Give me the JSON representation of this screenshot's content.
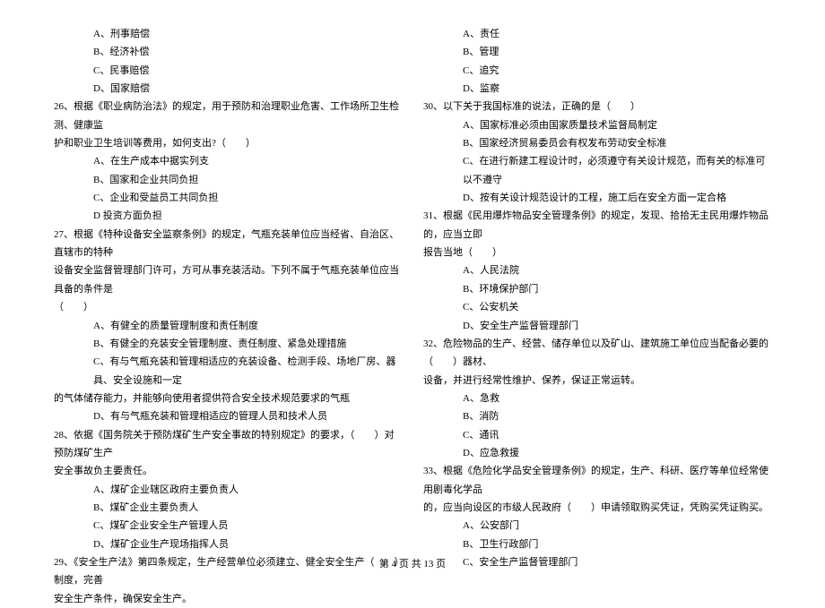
{
  "left": {
    "opts25": [
      "A、刑事赔偿",
      "B、经济补偿",
      "C、民事赔偿",
      "D、国家赔偿"
    ],
    "q26a": "26、根据《职业病防治法》的规定，用于预防和治理职业危害、工作场所卫生检测、健康监",
    "q26b": "护和职业卫生培训等费用，如何支出?（　　）",
    "opts26": [
      "A、在生产成本中据实列支",
      "B、国家和企业共同负担",
      "C、企业和受益员工共同负担",
      "D 投资方面负担"
    ],
    "q27a": "27、根据《特种设备安全监察条例》的规定，气瓶充装单位应当经省、自治区、直辖市的特种",
    "q27b": "设备安全监督管理部门许可，方可从事充装活动。下列不属于气瓶充装单位应当具备的条件是",
    "q27c": "（　　）",
    "opts27a": "A、有健全的质量管理制度和责任制度",
    "opts27b": "B、有健全的充装安全管理制度、责任制度、紧急处理措施",
    "opts27c1": "C、有与气瓶充装和管理相适应的充装设备、检测手段、场地厂房、器具、安全设施和一定",
    "opts27c2": "的气体储存能力，并能够向使用者提供符合安全技术规范要求的气瓶",
    "opts27d": "D、有与气瓶充装和管理相适应的管理人员和技术人员",
    "q28a": "28、依据《国务院关于预防煤矿生产安全事故的特别规定》的要求，（　　）对预防煤矿生产",
    "q28b": "安全事故负主要责任。",
    "opts28": [
      "A、煤矿企业辖区政府主要负责人",
      "B、煤矿企业主要负责人",
      "C、煤矿企业安全生产管理人员",
      "D、煤矿企业生产现场指挥人员"
    ],
    "q29a": "29、《安全生产法》第四条规定，生产经营单位必须建立、健全安全生产（　　）制度，完善",
    "q29b": "安全生产条件，确保安全生产。"
  },
  "right": {
    "opts29": [
      "A、责任",
      "B、管理",
      "C、追究",
      "D、监察"
    ],
    "q30": "30、以下关于我国标准的说法，正确的是（　　）",
    "opts30": [
      "A、国家标准必须由国家质量技术监督局制定",
      "B、国家经济贸易委员会有权发布劳动安全标准",
      "C、在进行新建工程设计时，必须遵守有关设计规范，而有关的标准可以不遵守",
      "D、按有关设计规范设计的工程，施工后在安全方面一定合格"
    ],
    "q31a": "31、根据《民用爆炸物品安全管理条例》的规定，发现、拾拾无主民用爆炸物品的，应当立即",
    "q31b": "报告当地（　　）",
    "opts31": [
      "A、人民法院",
      "B、环境保护部门",
      "C、公安机关",
      "D、安全生产监督管理部门"
    ],
    "q32a": "32、危险物品的生产、经营、储存单位以及矿山、建筑施工单位应当配备必要的（　　）器材、",
    "q32b": "设备，并进行经常性维护、保养，保证正常运转。",
    "opts32": [
      "A、急救",
      "B、消防",
      "C、通讯",
      "D、应急救援"
    ],
    "q33a": "33、根据《危险化学品安全管理条例》的规定，生产、科研、医疗等单位经常使用剧毒化学品",
    "q33b": "的，应当向设区的市级人民政府（　　）申请领取购买凭证，凭购买凭证购买。",
    "opts33": [
      "A、公安部门",
      "B、卫生行政部门",
      "C、安全生产监督管理部门"
    ]
  },
  "footer": "第 4 页 共 13 页"
}
